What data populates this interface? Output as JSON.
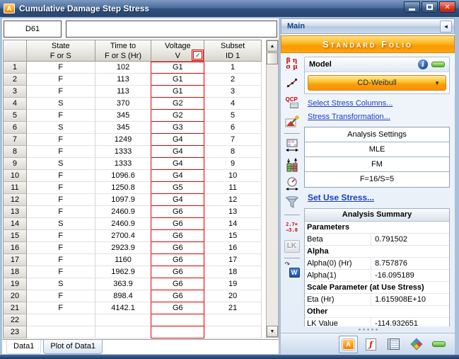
{
  "window": {
    "title": "Cumulative Damage Step Stress",
    "app_icon_letter": "A",
    "buttons": {
      "close_glyph": "✕"
    }
  },
  "folio": {
    "name_box": "D61",
    "formula_bar": "",
    "columns": [
      {
        "line1": "State",
        "line2": "F or S"
      },
      {
        "line1": "Time to",
        "line2": "F or S (Hr)"
      },
      {
        "line1": "Voltage",
        "line2": "V",
        "checkbox_checked": true,
        "checkbox_glyph": "✓"
      },
      {
        "line1": "Subset",
        "line2": "ID 1"
      }
    ],
    "rows": [
      {
        "n": "1",
        "state": "F",
        "time": "102",
        "voltage": "G1",
        "subset": "1"
      },
      {
        "n": "2",
        "state": "F",
        "time": "113",
        "voltage": "G1",
        "subset": "2"
      },
      {
        "n": "3",
        "state": "F",
        "time": "113",
        "voltage": "G1",
        "subset": "3"
      },
      {
        "n": "4",
        "state": "S",
        "time": "370",
        "voltage": "G2",
        "subset": "4"
      },
      {
        "n": "5",
        "state": "F",
        "time": "345",
        "voltage": "G2",
        "subset": "5"
      },
      {
        "n": "6",
        "state": "S",
        "time": "345",
        "voltage": "G3",
        "subset": "6"
      },
      {
        "n": "7",
        "state": "F",
        "time": "1249",
        "voltage": "G4",
        "subset": "7"
      },
      {
        "n": "8",
        "state": "F",
        "time": "1333",
        "voltage": "G4",
        "subset": "8"
      },
      {
        "n": "9",
        "state": "S",
        "time": "1333",
        "voltage": "G4",
        "subset": "9"
      },
      {
        "n": "10",
        "state": "F",
        "time": "1096.6",
        "voltage": "G4",
        "subset": "10"
      },
      {
        "n": "11",
        "state": "F",
        "time": "1250.8",
        "voltage": "G5",
        "subset": "11"
      },
      {
        "n": "12",
        "state": "F",
        "time": "1097.9",
        "voltage": "G4",
        "subset": "12"
      },
      {
        "n": "13",
        "state": "F",
        "time": "2460.9",
        "voltage": "G6",
        "subset": "13"
      },
      {
        "n": "14",
        "state": "S",
        "time": "2460.9",
        "voltage": "G6",
        "subset": "14"
      },
      {
        "n": "15",
        "state": "F",
        "time": "2700.4",
        "voltage": "G6",
        "subset": "15"
      },
      {
        "n": "16",
        "state": "F",
        "time": "2923.9",
        "voltage": "G6",
        "subset": "16"
      },
      {
        "n": "17",
        "state": "F",
        "time": "1160",
        "voltage": "G6",
        "subset": "17"
      },
      {
        "n": "18",
        "state": "F",
        "time": "1962.9",
        "voltage": "G6",
        "subset": "18"
      },
      {
        "n": "19",
        "state": "S",
        "time": "363.9",
        "voltage": "G6",
        "subset": "19"
      },
      {
        "n": "20",
        "state": "F",
        "time": "898.4",
        "voltage": "G6",
        "subset": "20"
      },
      {
        "n": "21",
        "state": "F",
        "time": "4142.1",
        "voltage": "G6",
        "subset": "21"
      },
      {
        "n": "22",
        "state": "",
        "time": "",
        "voltage": "",
        "subset": ""
      },
      {
        "n": "23",
        "state": "",
        "time": "",
        "voltage": "",
        "subset": ""
      }
    ],
    "tabs": [
      {
        "label": "Data1",
        "active": true
      },
      {
        "label": "Plot of Data1",
        "active": false
      }
    ]
  },
  "panel": {
    "header": "Main",
    "collapse_glyph": "◄",
    "banner": "Standard Folio",
    "model": {
      "title": "Model",
      "selected": "CD-Weibull",
      "dropdown_glyph": "▼"
    },
    "links": {
      "stress_columns": "Select Stress Columns...",
      "stress_transformation": "Stress Transformation...",
      "set_use_stress": "Set Use Stress..."
    },
    "analysis_settings": {
      "title": "Analysis Settings",
      "rows": [
        "MLE",
        "FM",
        "F=16/S=5"
      ]
    },
    "analysis_summary": {
      "title": "Analysis Summary",
      "rows": [
        {
          "type": "header",
          "label": "Parameters"
        },
        {
          "type": "data",
          "label": "Beta",
          "value": "0.791502"
        },
        {
          "type": "header",
          "label": "Alpha"
        },
        {
          "type": "data",
          "label": "Alpha(0) (Hr)",
          "value": "8.757876"
        },
        {
          "type": "data",
          "label": "Alpha(1)",
          "value": "-16.095189"
        },
        {
          "type": "header",
          "label": "Scale Parameter (at Use Stress)"
        },
        {
          "type": "data",
          "label": "Eta (Hr)",
          "value": "1.615908E+10"
        },
        {
          "type": "header",
          "label": "Other"
        },
        {
          "type": "data",
          "label": "LK Value",
          "value": "-114.932651"
        }
      ]
    },
    "icon_strip_names": [
      "parameters-icon",
      "probability-plot-icon",
      "qcp-icon",
      "plot-wizard-icon",
      "alter-grid-icon",
      "stress-columns-icon",
      "use-stress-gauge-icon",
      "filter-icon",
      "decimal-places-icon",
      "lk-value-icon",
      "transfer-weibull-icon"
    ],
    "bottom_toolbar_names": [
      "folio-view-button",
      "function-wizard-button",
      "report-button",
      "rs-draw-button",
      "status-indicator"
    ]
  },
  "icons": {
    "greek_top": "β η",
    "greek_bottom": "σ μ",
    "qcp": "QCP",
    "decimals_top": "2.7+",
    "decimals_bottom": "→3.0",
    "lk": "LK",
    "w": "W",
    "w_arrow": "↷",
    "arrow_up": "▲",
    "arrow_down": "▼"
  },
  "colors": {
    "stress_column_red": "#E00000",
    "banner_orange": "#F89A05",
    "model_button_orange": "#FFC62E",
    "link_blue": "#1A3DC1",
    "status_green": "#57B32F",
    "titlebar_blue": "#2F5181"
  }
}
